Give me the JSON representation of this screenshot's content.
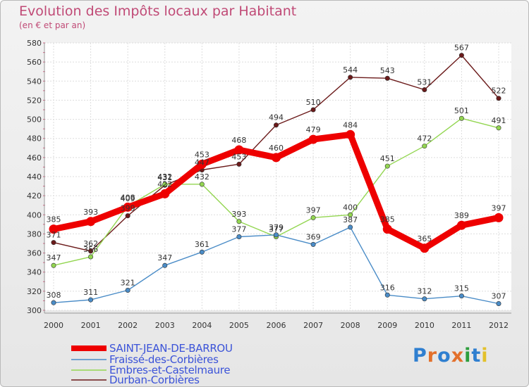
{
  "header": {
    "title": "Evolution des Impôts locaux par Habitant",
    "subtitle": "(en € et par an)"
  },
  "logo": {
    "text": "Proxiti",
    "letters": [
      {
        "ch": "P",
        "color": "#2f7fd0"
      },
      {
        "ch": "r",
        "color": "#e3702b"
      },
      {
        "ch": "o",
        "color": "#2f7fd0"
      },
      {
        "ch": "x",
        "color": "#e3702b"
      },
      {
        "ch": "i",
        "color": "#2e9e3d"
      },
      {
        "ch": "t",
        "color": "#2f7fd0"
      },
      {
        "ch": "i",
        "color": "#e3c12b"
      }
    ]
  },
  "chart_data": {
    "type": "line",
    "title": "Evolution des Impôts locaux par Habitant",
    "subtitle": "(en € et par an)",
    "x": [
      2000,
      2001,
      2002,
      2003,
      2004,
      2005,
      2006,
      2007,
      2008,
      2009,
      2010,
      2011,
      2012
    ],
    "ylim": [
      300,
      580
    ],
    "yticks": [
      300,
      320,
      340,
      360,
      380,
      400,
      420,
      440,
      460,
      480,
      500,
      520,
      540,
      560,
      580
    ],
    "grid": true,
    "legend_position": "bottom-left",
    "series": [
      {
        "name": "Durban-Corbières",
        "color": "#6b1a1a",
        "values": [
          371,
          362,
          399,
          431,
          447,
          453,
          494,
          510,
          544,
          543,
          531,
          567,
          522
        ]
      },
      {
        "name": "Embres-et-Castelmaure",
        "color": "#93d651",
        "values": [
          347,
          356,
          409,
          432,
          432,
          393,
          377,
          397,
          400,
          451,
          472,
          501,
          491
        ]
      },
      {
        "name": "Fraissé-des-Corbières",
        "color": "#4a8cc7",
        "values": [
          308,
          311,
          321,
          347,
          361,
          377,
          379,
          369,
          387,
          316,
          312,
          315,
          307
        ]
      },
      {
        "name": "SAINT-JEAN-DE-BARROU",
        "color": "#ee0000",
        "values": [
          385,
          393,
          408,
          422,
          453,
          468,
          460,
          479,
          484,
          385,
          365,
          389,
          397
        ]
      }
    ]
  },
  "legend": [
    {
      "name": "SAINT-JEAN-DE-BARROU",
      "color": "#ee0000",
      "weight": 8
    },
    {
      "name": "Fraissé-des-Corbières",
      "color": "#4a8cc7",
      "weight": 1.5
    },
    {
      "name": "Embres-et-Castelmaure",
      "color": "#93d651",
      "weight": 1.5
    },
    {
      "name": "Durban-Corbières",
      "color": "#6b1a1a",
      "weight": 1.5
    }
  ]
}
